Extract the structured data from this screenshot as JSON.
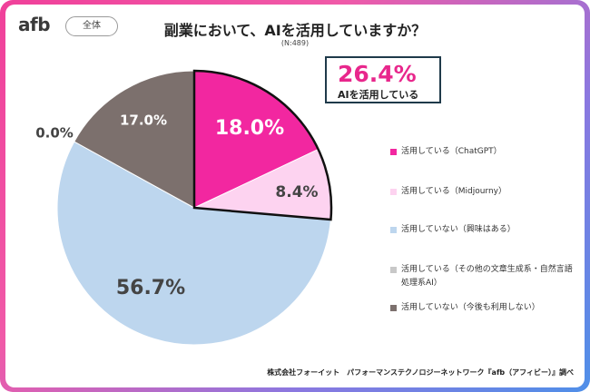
{
  "header": {
    "logo_text": "afb",
    "segment_tag": "全体",
    "title": "副業において、AIを活用していますか？",
    "sample_size": "(N:489)"
  },
  "callout": {
    "value": "26.4%",
    "label": "AIを活用している"
  },
  "footer": {
    "source": "株式会社フォーイット　パフォーマンステクノロジーネットワーク『afb（アフィビー）』調べ"
  },
  "chart_data": {
    "type": "pie",
    "title": "副業において、AIを活用していますか？",
    "slices": [
      {
        "name": "活用している（ChatGPT）",
        "value": 18.0,
        "label": "18.0%",
        "color": "#f227a0",
        "highlight": true
      },
      {
        "name": "活用している（Midjourny）",
        "value": 8.4,
        "label": "8.4%",
        "color": "#fdd3f0",
        "highlight": true
      },
      {
        "name": "活用していない（興味はある）",
        "value": 56.7,
        "label": "56.7%",
        "color": "#bdd6ee",
        "highlight": false
      },
      {
        "name": "活用している（その他の文章生成系・自然言語処理系AI）",
        "value": 0.0,
        "label": "0.0%",
        "color": "#c8c8c8",
        "highlight": false
      },
      {
        "name": "活用していない（今後も利用しない）",
        "value": 17.0,
        "label": "17.0%",
        "color": "#7c706d",
        "highlight": false
      }
    ],
    "legend_position": "right",
    "legend": [
      "活用している（ChatGPT）",
      "活用している（Midjourny）",
      "活用していない（興味はある）",
      "活用している（その他の文章生成系・自然言語処理系AI）",
      "活用していない（今後も利用しない）"
    ]
  }
}
